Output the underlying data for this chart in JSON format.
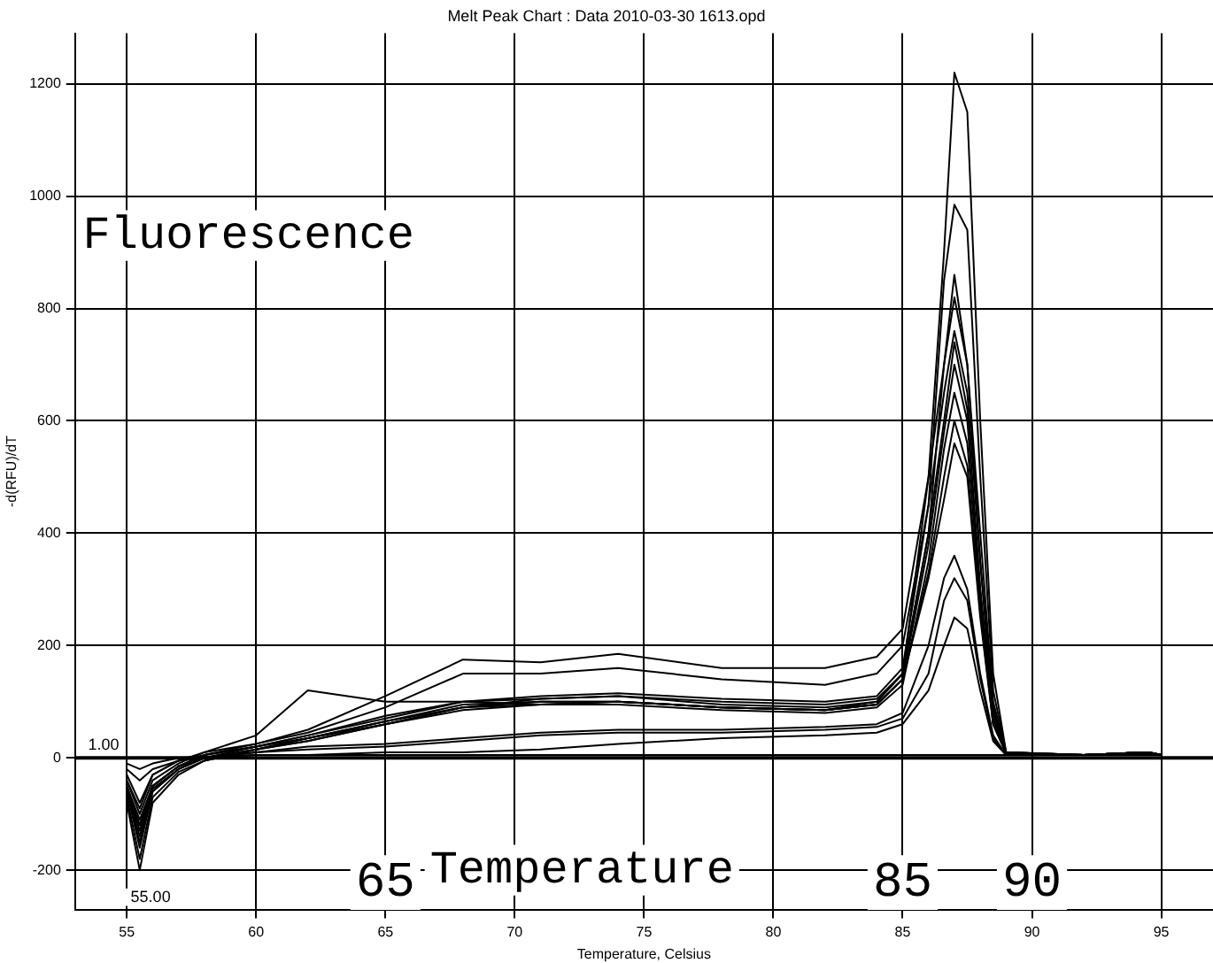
{
  "chart_data": {
    "type": "line",
    "title": "Melt Peak Chart : Data 2010-03-30 1613.opd",
    "xlabel": "Temperature, Celsius",
    "ylabel": "-d(RFU)/dT",
    "annotations": [
      "Fluorescence",
      "Temperature",
      "65",
      "85",
      "90",
      "1.00",
      "55.00"
    ],
    "ref_lines": [
      {
        "axis": "y",
        "value": 0,
        "color": "#000000"
      }
    ],
    "x": [
      55,
      55.5,
      56,
      57,
      58,
      60,
      62,
      65,
      68,
      71,
      74,
      78,
      82,
      84,
      85,
      86,
      86.6,
      87,
      87.5,
      88,
      88.5,
      89,
      92,
      94.5,
      95
    ],
    "xlim": [
      53,
      97
    ],
    "xticks": [
      55,
      60,
      65,
      70,
      75,
      80,
      85,
      90,
      95
    ],
    "ylim": [
      -270,
      1290
    ],
    "yticks": [
      -200,
      0,
      200,
      400,
      600,
      800,
      1000,
      1200
    ],
    "grid": true,
    "marker": "none",
    "line_style": "solid",
    "legend": false,
    "series": [
      {
        "color": "#000000",
        "values": [
          -40,
          -90,
          -30,
          -5,
          5,
          20,
          35,
          60,
          90,
          105,
          110,
          100,
          95,
          105,
          150,
          500,
          900,
          1220,
          1150,
          600,
          150,
          10,
          5,
          10,
          5
        ]
      },
      {
        "color": "#000000",
        "values": [
          -50,
          -120,
          -50,
          -15,
          5,
          20,
          40,
          70,
          100,
          110,
          115,
          105,
          100,
          110,
          160,
          450,
          850,
          985,
          940,
          500,
          120,
          10,
          5,
          10,
          5
        ]
      },
      {
        "color": "#000000",
        "values": [
          -30,
          -80,
          -30,
          -5,
          10,
          25,
          50,
          110,
          175,
          170,
          185,
          160,
          160,
          180,
          230,
          500,
          700,
          860,
          700,
          400,
          100,
          10,
          5,
          10,
          5
        ]
      },
      {
        "color": "#000000",
        "values": [
          -40,
          -100,
          -40,
          -10,
          10,
          40,
          120,
          100,
          100,
          95,
          100,
          90,
          85,
          100,
          150,
          400,
          700,
          820,
          700,
          350,
          80,
          10,
          5,
          10,
          5
        ]
      },
      {
        "color": "#000000",
        "values": [
          -50,
          -130,
          -50,
          -15,
          5,
          25,
          45,
          90,
          150,
          150,
          160,
          140,
          130,
          150,
          200,
          450,
          650,
          760,
          650,
          350,
          90,
          10,
          5,
          10,
          5
        ]
      },
      {
        "color": "#000000",
        "values": [
          -60,
          -150,
          -60,
          -20,
          0,
          20,
          40,
          75,
          100,
          105,
          110,
          95,
          90,
          100,
          150,
          400,
          600,
          740,
          620,
          300,
          80,
          8,
          5,
          10,
          5
        ]
      },
      {
        "color": "#000000",
        "values": [
          -70,
          -180,
          -70,
          -25,
          -5,
          15,
          35,
          65,
          95,
          100,
          100,
          90,
          85,
          95,
          140,
          380,
          580,
          700,
          600,
          300,
          70,
          8,
          5,
          10,
          5
        ]
      },
      {
        "color": "#000000",
        "values": [
          -80,
          -200,
          -80,
          -30,
          -5,
          15,
          30,
          60,
          85,
          95,
          95,
          85,
          80,
          90,
          130,
          350,
          550,
          650,
          560,
          280,
          60,
          8,
          5,
          10,
          5
        ]
      },
      {
        "color": "#000000",
        "values": [
          -60,
          -160,
          -60,
          -20,
          0,
          15,
          30,
          60,
          90,
          100,
          100,
          90,
          85,
          95,
          140,
          330,
          500,
          600,
          520,
          260,
          60,
          8,
          5,
          10,
          5
        ]
      },
      {
        "color": "#000000",
        "values": [
          -55,
          -140,
          -55,
          -20,
          0,
          15,
          35,
          65,
          90,
          95,
          100,
          90,
          85,
          95,
          140,
          320,
          460,
          560,
          500,
          250,
          60,
          8,
          5,
          10,
          5
        ]
      },
      {
        "color": "#000000",
        "values": [
          -50,
          -120,
          -50,
          -15,
          0,
          10,
          20,
          25,
          35,
          45,
          50,
          50,
          55,
          60,
          80,
          200,
          320,
          360,
          300,
          150,
          40,
          5,
          5,
          10,
          5
        ]
      },
      {
        "color": "#000000",
        "values": [
          -50,
          -110,
          -50,
          -15,
          0,
          10,
          15,
          20,
          30,
          40,
          45,
          45,
          50,
          55,
          70,
          150,
          280,
          320,
          280,
          140,
          35,
          5,
          5,
          10,
          5
        ]
      },
      {
        "color": "#000000",
        "values": [
          -20,
          -40,
          -20,
          -5,
          0,
          5,
          5,
          10,
          10,
          15,
          25,
          35,
          40,
          45,
          60,
          120,
          200,
          250,
          230,
          120,
          30,
          5,
          5,
          10,
          5
        ]
      },
      {
        "color": "#000000",
        "values": [
          -10,
          -20,
          -10,
          0,
          2,
          5,
          5,
          5,
          5,
          5,
          5,
          5,
          5,
          5,
          5,
          5,
          5,
          5,
          5,
          5,
          5,
          5,
          5,
          5,
          5
        ]
      }
    ]
  }
}
